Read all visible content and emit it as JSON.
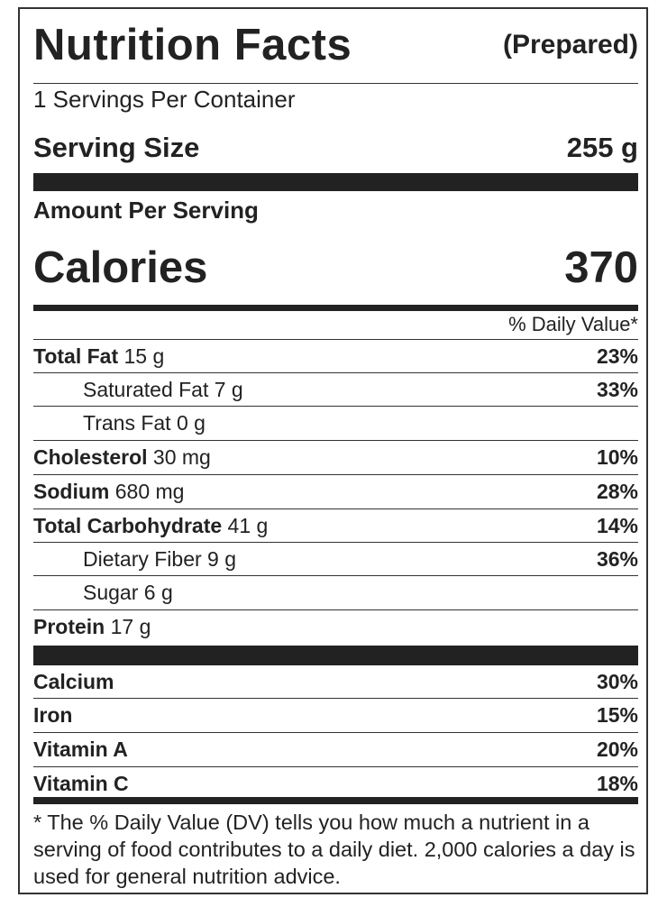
{
  "header": {
    "title": "Nutrition Facts",
    "subtitle": "(Prepared)",
    "servings": "1 Servings Per Container",
    "serving_size_label": "Serving Size",
    "serving_size": "255 g",
    "amount_per_serving": "Amount Per Serving",
    "calories_label": "Calories",
    "calories": "370",
    "daily_value_header": "% Daily Value*"
  },
  "nutrients": [
    {
      "name": "Total Fat",
      "amount": "15 g",
      "dv": "23%"
    },
    {
      "name": "Saturated Fat",
      "amount": "7 g",
      "dv": "33%"
    },
    {
      "name": "Trans Fat",
      "amount": "0 g"
    },
    {
      "name": "Cholesterol",
      "amount": "30 mg",
      "dv": "10%"
    },
    {
      "name": "Sodium",
      "amount": "680 mg",
      "dv": "28%"
    },
    {
      "name": "Total Carbohydrate",
      "amount": "41 g",
      "dv": "14%"
    },
    {
      "name": "Dietary Fiber",
      "amount": "9 g",
      "dv": "36%"
    },
    {
      "name": "Sugar",
      "amount": "6 g"
    },
    {
      "name": "Protein",
      "amount": "17 g"
    }
  ],
  "vitamins": [
    {
      "name": "Calcium",
      "dv": "30%"
    },
    {
      "name": "Iron",
      "dv": "15%"
    },
    {
      "name": "Vitamin A",
      "dv": "20%"
    },
    {
      "name": "Vitamin C",
      "dv": "18%"
    }
  ],
  "footnote": "* The % Daily Value (DV) tells you how much a nutrient in a serving of food contributes to a daily diet. 2,000 calories a day is used for general nutrition advice."
}
